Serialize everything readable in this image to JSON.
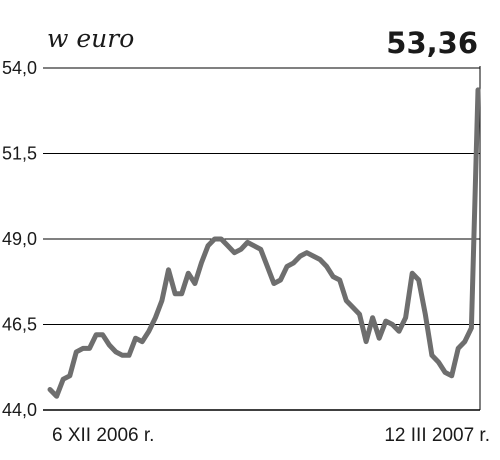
{
  "header": {
    "unit": "w euro",
    "latest_value": "53,36"
  },
  "chart_data": {
    "type": "line",
    "title": "",
    "xlabel": "",
    "ylabel": "w euro",
    "ylim": [
      44.0,
      54.0
    ],
    "yticks": [
      44.0,
      46.5,
      49.0,
      51.5,
      54.0
    ],
    "ytick_labels": [
      "44,0",
      "46,5",
      "49,0",
      "51,5",
      "54,0"
    ],
    "grid": true,
    "x_labels": [
      "6 XII 2006 r.",
      "12 III 2007 r."
    ],
    "colors": {
      "line": "#6e6e6e",
      "grid": "#000000"
    },
    "series": [
      {
        "values": [
          44.6,
          44.4,
          44.9,
          45.0,
          45.7,
          45.8,
          45.8,
          46.2,
          46.2,
          45.9,
          45.7,
          45.6,
          45.6,
          46.1,
          46.0,
          46.3,
          46.7,
          47.2,
          48.1,
          47.4,
          47.4,
          48.0,
          47.7,
          48.3,
          48.8,
          49.0,
          49.0,
          48.8,
          48.6,
          48.7,
          48.9,
          48.8,
          48.7,
          48.2,
          47.7,
          47.8,
          48.2,
          48.3,
          48.5,
          48.6,
          48.5,
          48.4,
          48.2,
          47.9,
          47.8,
          47.2,
          47.0,
          46.8,
          46.0,
          46.7,
          46.1,
          46.6,
          46.5,
          46.3,
          46.7,
          48.0,
          47.8,
          46.8,
          45.6,
          45.4,
          45.1,
          45.0,
          45.8,
          46.0,
          46.4,
          53.36
        ]
      }
    ]
  }
}
